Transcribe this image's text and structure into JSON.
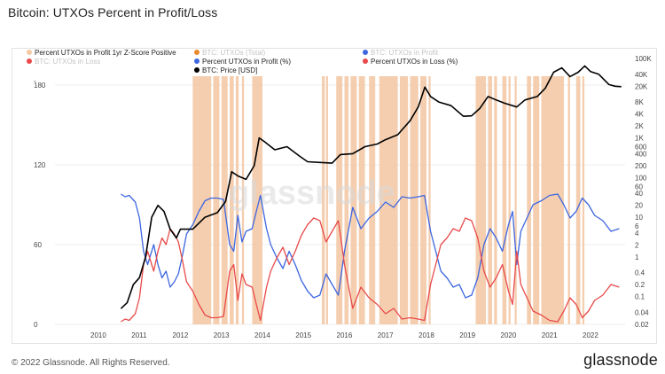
{
  "title": "Bitcoin: UTXOs Percent in Profit/Loss",
  "footer": "© 2022 Glassnode. All Rights Reserved.",
  "brand": "glassnode",
  "watermark": "glassnode",
  "colors": {
    "zscore": "#f3c9a6",
    "total": "#e8892e",
    "btc_profit": "#3d66e0",
    "btc_loss": "#e84a4a",
    "price": "#000000"
  },
  "legend": [
    {
      "label": "Percent UTXOs in Profit 1yr Z-Score Positive",
      "color": "#f3c9a6",
      "muted": false
    },
    {
      "label": "BTC: UTXOs (Total)",
      "color": "#e8892e",
      "muted": true
    },
    {
      "label": "BTC: UTXOs in Profit",
      "color": "#3d66e0",
      "muted": true
    },
    {
      "label": "BTC: UTXOs in Loss",
      "color": "#e84a4a",
      "muted": true
    },
    {
      "label": "Percent UTXOs in Profit (%)",
      "color": "#3d66e0",
      "muted": false
    },
    {
      "label": "Percent UTXOs in Loss (%)",
      "color": "#e84a4a",
      "muted": false
    },
    {
      "label": "BTC: Price [USD]",
      "color": "#000000",
      "muted": false
    }
  ],
  "chart_data": {
    "type": "line",
    "x_ticks": [
      "2010",
      "2011",
      "2012",
      "2013",
      "2014",
      "2015",
      "2016",
      "2017",
      "2018",
      "2019",
      "2020",
      "2021",
      "2022"
    ],
    "left_axis": {
      "ticks": [
        "0",
        "60",
        "120",
        "180"
      ],
      "range": [
        0,
        200
      ]
    },
    "right_axis": {
      "scale": "log",
      "ticks": [
        "0.02",
        "0.04",
        "0.1",
        "0.2",
        "0.4",
        "1",
        "2",
        "4",
        "6",
        "10",
        "20",
        "40",
        "60",
        "100",
        "200",
        "400",
        "600",
        "1K",
        "2K",
        "4K",
        "8K",
        "20K",
        "40K",
        "100K"
      ],
      "range": [
        0.02,
        100000
      ]
    },
    "zscore_positive_bands": [
      [
        2012.3,
        2012.75
      ],
      [
        2012.8,
        2012.95
      ],
      [
        2013.0,
        2013.15
      ],
      [
        2013.2,
        2013.3
      ],
      [
        2013.35,
        2013.42
      ],
      [
        2013.5,
        2013.55
      ],
      [
        2013.75,
        2014.0
      ],
      [
        2015.45,
        2015.52
      ],
      [
        2015.55,
        2015.6
      ],
      [
        2015.8,
        2015.95
      ],
      [
        2016.0,
        2016.1
      ],
      [
        2016.15,
        2016.3
      ],
      [
        2016.35,
        2016.5
      ],
      [
        2016.6,
        2016.75
      ],
      [
        2016.85,
        2017.3
      ],
      [
        2017.35,
        2017.55
      ],
      [
        2017.6,
        2017.8
      ],
      [
        2017.85,
        2018.0
      ],
      [
        2018.05,
        2018.1
      ],
      [
        2019.2,
        2019.45
      ],
      [
        2019.5,
        2019.6
      ],
      [
        2019.65,
        2019.72
      ],
      [
        2019.85,
        2019.95
      ],
      [
        2020.0,
        2020.05
      ],
      [
        2020.15,
        2020.2
      ],
      [
        2020.45,
        2020.55
      ],
      [
        2020.6,
        2020.75
      ],
      [
        2020.8,
        2021.35
      ],
      [
        2021.45,
        2021.5
      ],
      [
        2021.65,
        2021.75
      ],
      [
        2021.8,
        2021.85
      ]
    ],
    "series": [
      {
        "name": "Percent UTXOs in Profit (%)",
        "axis": "left",
        "x": [
          2010.55,
          2010.65,
          2010.75,
          2010.9,
          2011.0,
          2011.1,
          2011.2,
          2011.35,
          2011.45,
          2011.55,
          2011.65,
          2011.75,
          2011.85,
          2011.95,
          2012.05,
          2012.15,
          2012.3,
          2012.45,
          2012.6,
          2012.75,
          2012.9,
          2013.05,
          2013.2,
          2013.3,
          2013.4,
          2013.5,
          2013.6,
          2013.75,
          2013.85,
          2013.95,
          2014.1,
          2014.2,
          2014.35,
          2014.5,
          2014.65,
          2014.8,
          2014.95,
          2015.1,
          2015.25,
          2015.4,
          2015.55,
          2015.7,
          2015.85,
          2016.0,
          2016.2,
          2016.4,
          2016.6,
          2016.8,
          2017.0,
          2017.2,
          2017.4,
          2017.6,
          2017.8,
          2017.95,
          2018.1,
          2018.2,
          2018.35,
          2018.5,
          2018.65,
          2018.8,
          2018.95,
          2019.1,
          2019.25,
          2019.4,
          2019.55,
          2019.7,
          2019.85,
          2020.0,
          2020.1,
          2020.2,
          2020.3,
          2020.45,
          2020.6,
          2020.8,
          2021.0,
          2021.2,
          2021.35,
          2021.5,
          2021.65,
          2021.8,
          2021.95,
          2022.1,
          2022.3,
          2022.5,
          2022.7
        ],
        "values": [
          98,
          96,
          97,
          92,
          80,
          55,
          45,
          60,
          45,
          35,
          40,
          28,
          32,
          38,
          52,
          68,
          75,
          85,
          93,
          95,
          95,
          94,
          60,
          55,
          82,
          62,
          70,
          72,
          85,
          97,
          72,
          60,
          50,
          42,
          55,
          45,
          33,
          25,
          20,
          22,
          38,
          30,
          22,
          55,
          88,
          72,
          80,
          85,
          92,
          88,
          96,
          95,
          96,
          97,
          70,
          58,
          40,
          35,
          28,
          30,
          20,
          22,
          35,
          60,
          72,
          65,
          55,
          75,
          85,
          45,
          70,
          80,
          90,
          93,
          97,
          98,
          90,
          80,
          85,
          95,
          90,
          82,
          78,
          70,
          72
        ]
      },
      {
        "name": "Percent UTXOs in Loss (%)",
        "axis": "left",
        "x": [
          2010.55,
          2010.65,
          2010.75,
          2010.9,
          2011.0,
          2011.1,
          2011.2,
          2011.35,
          2011.45,
          2011.55,
          2011.65,
          2011.75,
          2011.85,
          2011.95,
          2012.05,
          2012.15,
          2012.3,
          2012.45,
          2012.6,
          2012.75,
          2012.9,
          2013.05,
          2013.2,
          2013.3,
          2013.4,
          2013.5,
          2013.6,
          2013.75,
          2013.85,
          2013.95,
          2014.1,
          2014.2,
          2014.35,
          2014.5,
          2014.65,
          2014.8,
          2014.95,
          2015.1,
          2015.25,
          2015.4,
          2015.55,
          2015.7,
          2015.85,
          2016.0,
          2016.2,
          2016.4,
          2016.6,
          2016.8,
          2017.0,
          2017.2,
          2017.4,
          2017.6,
          2017.8,
          2017.95,
          2018.1,
          2018.2,
          2018.35,
          2018.5,
          2018.65,
          2018.8,
          2018.95,
          2019.1,
          2019.25,
          2019.4,
          2019.55,
          2019.7,
          2019.85,
          2020.0,
          2020.1,
          2020.2,
          2020.3,
          2020.45,
          2020.6,
          2020.8,
          2021.0,
          2021.2,
          2021.35,
          2021.5,
          2021.65,
          2021.8,
          2021.95,
          2022.1,
          2022.3,
          2022.5,
          2022.7
        ],
        "values": [
          2,
          4,
          3,
          8,
          20,
          45,
          55,
          40,
          55,
          65,
          60,
          72,
          68,
          62,
          48,
          32,
          25,
          15,
          7,
          5,
          5,
          6,
          40,
          45,
          18,
          38,
          30,
          28,
          15,
          3,
          28,
          40,
          50,
          58,
          45,
          55,
          67,
          75,
          80,
          78,
          62,
          70,
          78,
          45,
          12,
          28,
          20,
          15,
          8,
          12,
          4,
          5,
          4,
          3,
          30,
          42,
          60,
          65,
          72,
          70,
          80,
          78,
          65,
          40,
          28,
          35,
          45,
          25,
          15,
          55,
          30,
          20,
          10,
          7,
          3,
          2,
          10,
          20,
          15,
          5,
          10,
          18,
          22,
          30,
          28
        ]
      },
      {
        "name": "BTC: Price [USD]",
        "axis": "right",
        "x": [
          2010.55,
          2010.7,
          2010.85,
          2011.0,
          2011.15,
          2011.3,
          2011.45,
          2011.6,
          2011.75,
          2011.9,
          2012.0,
          2012.3,
          2012.6,
          2012.9,
          2013.1,
          2013.25,
          2013.4,
          2013.6,
          2013.8,
          2013.92,
          2014.05,
          2014.3,
          2014.6,
          2014.9,
          2015.1,
          2015.4,
          2015.7,
          2015.9,
          2016.2,
          2016.5,
          2016.8,
          2017.0,
          2017.3,
          2017.6,
          2017.8,
          2017.96,
          2018.1,
          2018.3,
          2018.6,
          2018.9,
          2019.1,
          2019.3,
          2019.5,
          2019.7,
          2019.9,
          2020.2,
          2020.4,
          2020.7,
          2020.9,
          2021.1,
          2021.3,
          2021.5,
          2021.7,
          2021.86,
          2022.0,
          2022.2,
          2022.45,
          2022.6,
          2022.75
        ],
        "values": [
          0.05,
          0.07,
          0.2,
          0.3,
          1,
          10,
          20,
          14,
          5,
          3,
          5,
          5,
          10,
          13,
          25,
          140,
          110,
          90,
          200,
          1000,
          800,
          500,
          600,
          350,
          250,
          240,
          230,
          380,
          400,
          600,
          700,
          900,
          1200,
          2700,
          6000,
          19000,
          11000,
          8000,
          6500,
          3500,
          3600,
          5500,
          11000,
          9000,
          7500,
          6000,
          9000,
          11000,
          18000,
          45000,
          58000,
          35000,
          45000,
          65000,
          47000,
          40000,
          22000,
          20000,
          19500
        ]
      }
    ]
  }
}
